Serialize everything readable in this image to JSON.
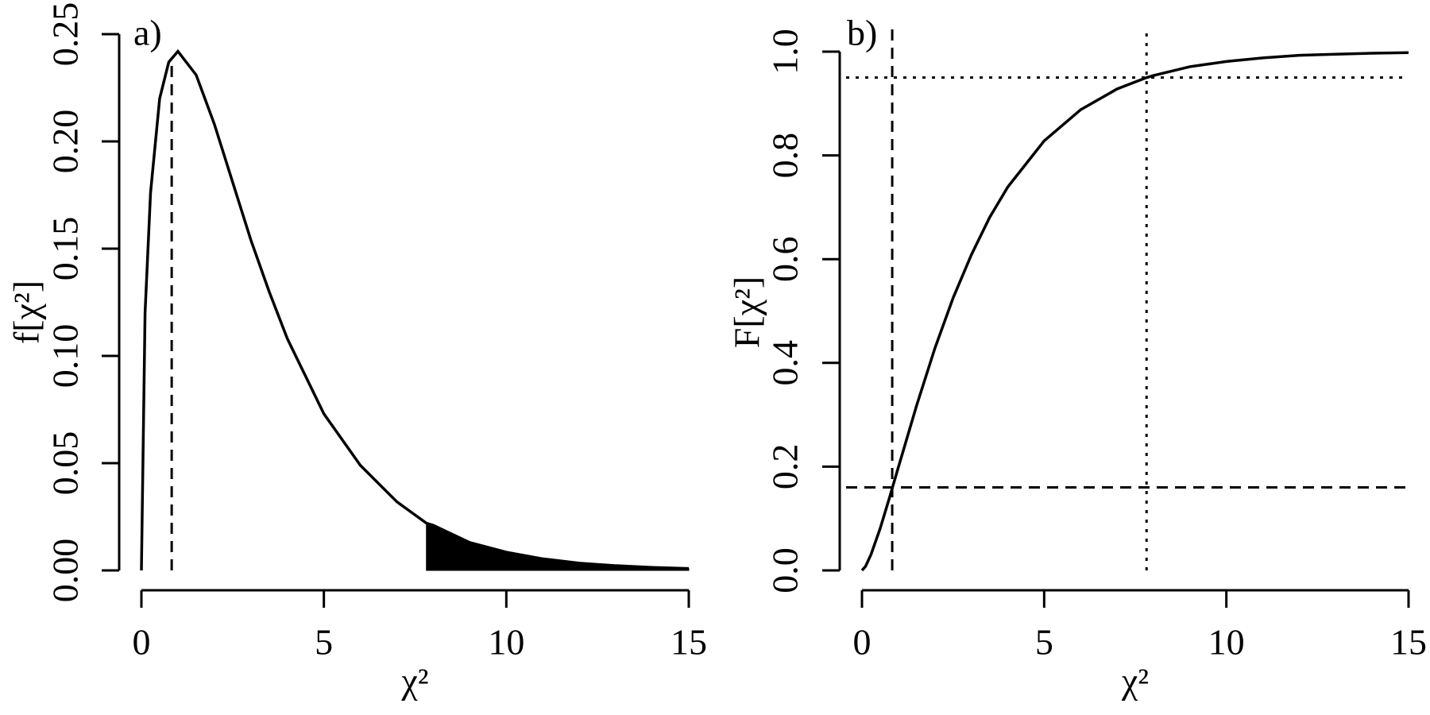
{
  "chart_data": [
    {
      "type": "line",
      "panel_label": "a)",
      "xlabel": "χ²",
      "ylabel": "f[χ²]",
      "x": [
        0,
        0.1,
        0.25,
        0.5,
        0.75,
        1,
        1.5,
        2,
        2.5,
        3,
        3.5,
        4,
        5,
        6,
        7,
        7.81,
        8,
        9,
        10,
        11,
        12,
        13,
        14,
        15
      ],
      "series": [
        {
          "color": "#000000",
          "values": [
            0,
            0.12,
            0.176,
            0.22,
            0.237,
            0.242,
            0.231,
            0.208,
            0.181,
            0.154,
            0.13,
            0.108,
            0.073,
            0.049,
            0.032,
            0.022,
            0.021,
            0.013,
            0.0085,
            0.0054,
            0.0034,
            0.0022,
            0.0014,
            0.0009
          ]
        }
      ],
      "xlim": [
        0,
        15
      ],
      "xticks": [
        0,
        5,
        10,
        15
      ],
      "ylim": [
        0,
        0.25
      ],
      "yticks": [
        {
          "value": 0,
          "label": "0.00"
        },
        {
          "value": 0.05,
          "label": "0.05"
        },
        {
          "value": 0.1,
          "label": "0.10"
        },
        {
          "value": 0.15,
          "label": "0.15"
        },
        {
          "value": 0.2,
          "label": "0.20"
        },
        {
          "value": 0.25,
          "label": "0.25"
        }
      ],
      "shade_from": 7.81,
      "vlines": [
        {
          "x": 0.83,
          "style": "dashed",
          "to_curve": true
        }
      ]
    },
    {
      "type": "line",
      "panel_label": "b)",
      "xlabel": "χ²",
      "ylabel": "F[χ²]",
      "x": [
        0,
        0.1,
        0.25,
        0.5,
        0.75,
        1,
        1.5,
        2,
        2.5,
        3,
        3.5,
        4,
        5,
        6,
        7,
        7.81,
        8,
        9,
        10,
        11,
        12,
        13,
        14,
        15
      ],
      "series": [
        {
          "color": "#000000",
          "values": [
            0,
            0.008,
            0.031,
            0.081,
            0.139,
            0.199,
            0.318,
            0.428,
            0.525,
            0.608,
            0.68,
            0.739,
            0.828,
            0.888,
            0.928,
            0.95,
            0.954,
            0.971,
            0.981,
            0.988,
            0.993,
            0.995,
            0.997,
            0.998
          ]
        }
      ],
      "xlim": [
        0,
        15
      ],
      "xticks": [
        0,
        5,
        10,
        15
      ],
      "ylim": [
        0,
        1
      ],
      "yticks": [
        {
          "value": 0,
          "label": "0.0"
        },
        {
          "value": 0.2,
          "label": "0.2"
        },
        {
          "value": 0.4,
          "label": "0.4"
        },
        {
          "value": 0.6,
          "label": "0.6"
        },
        {
          "value": 0.8,
          "label": "0.8"
        },
        {
          "value": 1,
          "label": "1.0"
        }
      ],
      "vlines": [
        {
          "x": 0.83,
          "style": "dashed",
          "to_curve": false
        },
        {
          "x": 7.81,
          "style": "dotted",
          "to_curve": false
        }
      ],
      "hlines": [
        {
          "y": 0.16,
          "style": "dashed"
        },
        {
          "y": 0.95,
          "style": "dotted"
        }
      ]
    }
  ]
}
